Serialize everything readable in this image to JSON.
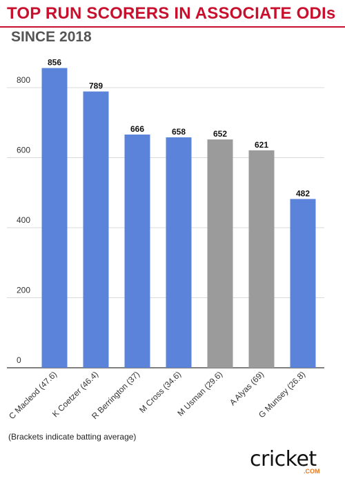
{
  "title": "TOP RUN SCORERS IN ASSOCIATE ODIs",
  "subtitle": "SINCE 2018",
  "footnote": "(Brackets indicate batting average)",
  "logo": {
    "text": "cricket",
    "dotcom": ".COM",
    "accent": "#e87a1e"
  },
  "colors": {
    "title": "#c8102e",
    "blue": "#5a83d9",
    "gray": "#9b9b9b",
    "grid": "#d9d9d9"
  },
  "chart_data": {
    "type": "bar",
    "categories": [
      "C Macleod (47.6)",
      "K Coetzer (46.4)",
      "R Berrington (37)",
      "M Cross (34.6)",
      "M Usman (29.6)",
      "A Alyas (69)",
      "G Munsey (26.8)"
    ],
    "values": [
      856,
      789,
      666,
      658,
      652,
      621,
      482
    ],
    "bar_colors": [
      "blue",
      "blue",
      "blue",
      "blue",
      "gray",
      "gray",
      "blue"
    ],
    "yticks": [
      0,
      200,
      400,
      600,
      800
    ],
    "ylim": [
      0,
      900
    ],
    "grid": true,
    "data_labels": true
  }
}
